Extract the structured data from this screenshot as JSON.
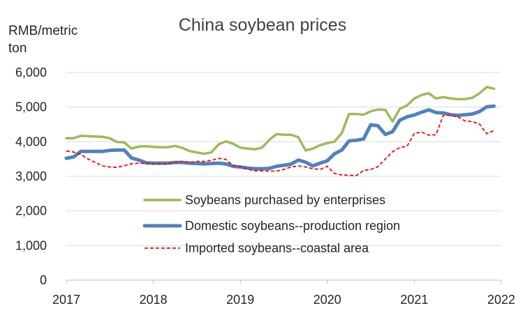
{
  "chart_data": {
    "type": "line",
    "title": "China soybean prices",
    "ylabel_line1": "RMB/metric",
    "ylabel_line2": "ton",
    "xlabel": "",
    "ylim": [
      0,
      6000
    ],
    "y_ticks": [
      {
        "value": 0,
        "label": "0"
      },
      {
        "value": 1000,
        "label": "1,000"
      },
      {
        "value": 2000,
        "label": "2,000"
      },
      {
        "value": 3000,
        "label": "3,000"
      },
      {
        "value": 4000,
        "label": "4,000"
      },
      {
        "value": 5000,
        "label": "5,000"
      },
      {
        "value": 6000,
        "label": "6,000"
      }
    ],
    "xlim": [
      2017,
      2022
    ],
    "x_ticks": [
      {
        "value": 2017,
        "label": "2017"
      },
      {
        "value": 2018,
        "label": "2018"
      },
      {
        "value": 2019,
        "label": "2019"
      },
      {
        "value": 2020,
        "label": "2020"
      },
      {
        "value": 2021,
        "label": "2021"
      },
      {
        "value": 2022,
        "label": "2022"
      }
    ],
    "grid": true,
    "legend_position": "bottom-center",
    "x": [
      2017.0,
      2017.083,
      2017.167,
      2017.25,
      2017.333,
      2017.417,
      2017.5,
      2017.583,
      2017.667,
      2017.75,
      2017.833,
      2017.917,
      2018.0,
      2018.083,
      2018.167,
      2018.25,
      2018.333,
      2018.417,
      2018.5,
      2018.583,
      2018.667,
      2018.75,
      2018.833,
      2018.917,
      2019.0,
      2019.083,
      2019.167,
      2019.25,
      2019.333,
      2019.417,
      2019.5,
      2019.583,
      2019.667,
      2019.75,
      2019.833,
      2019.917,
      2020.0,
      2020.083,
      2020.167,
      2020.25,
      2020.333,
      2020.417,
      2020.5,
      2020.583,
      2020.667,
      2020.75,
      2020.833,
      2020.917,
      2021.0,
      2021.083,
      2021.167,
      2021.25,
      2021.333,
      2021.417,
      2021.5,
      2021.583,
      2021.667,
      2021.75,
      2021.833,
      2021.917
    ],
    "series": [
      {
        "name": "Soybeans purchased by enterprises",
        "color": "#9bbb59",
        "style": "solid",
        "values": [
          4100,
          4100,
          4170,
          4160,
          4150,
          4140,
          4100,
          3990,
          3980,
          3800,
          3860,
          3870,
          3850,
          3840,
          3840,
          3880,
          3820,
          3730,
          3690,
          3650,
          3690,
          3920,
          4010,
          3940,
          3830,
          3800,
          3780,
          3830,
          4050,
          4220,
          4200,
          4200,
          4130,
          3750,
          3800,
          3900,
          3960,
          4000,
          4250,
          4800,
          4800,
          4780,
          4880,
          4930,
          4920,
          4580,
          4950,
          5050,
          5250,
          5350,
          5400,
          5250,
          5290,
          5250,
          5230,
          5230,
          5270,
          5400,
          5580,
          5530
        ]
      },
      {
        "name": "Domestic soybeans--production region",
        "color": "#4f81bd",
        "style": "solid",
        "values": [
          3520,
          3560,
          3720,
          3720,
          3720,
          3720,
          3750,
          3760,
          3760,
          3530,
          3470,
          3390,
          3380,
          3380,
          3380,
          3400,
          3400,
          3380,
          3370,
          3360,
          3370,
          3380,
          3360,
          3290,
          3270,
          3240,
          3220,
          3220,
          3230,
          3290,
          3320,
          3350,
          3470,
          3410,
          3300,
          3380,
          3450,
          3650,
          3760,
          4020,
          4040,
          4080,
          4490,
          4460,
          4210,
          4290,
          4620,
          4720,
          4770,
          4850,
          4920,
          4840,
          4830,
          4780,
          4760,
          4780,
          4800,
          4870,
          5010,
          5030
        ]
      },
      {
        "name": "Imported soybeans--coastal area",
        "color": "#ff0000",
        "style": "dashed",
        "values": [
          3730,
          3700,
          3630,
          3500,
          3400,
          3300,
          3270,
          3260,
          3310,
          3360,
          3380,
          3370,
          3360,
          3360,
          3370,
          3390,
          3430,
          3400,
          3430,
          3430,
          3460,
          3520,
          3490,
          3310,
          3280,
          3210,
          3160,
          3160,
          3150,
          3150,
          3200,
          3270,
          3300,
          3270,
          3220,
          3200,
          3290,
          3080,
          3040,
          3030,
          3020,
          3170,
          3200,
          3280,
          3500,
          3710,
          3830,
          3870,
          4240,
          4280,
          4190,
          4200,
          4760,
          4760,
          4720,
          4600,
          4580,
          4510,
          4230,
          4320
        ]
      }
    ]
  }
}
